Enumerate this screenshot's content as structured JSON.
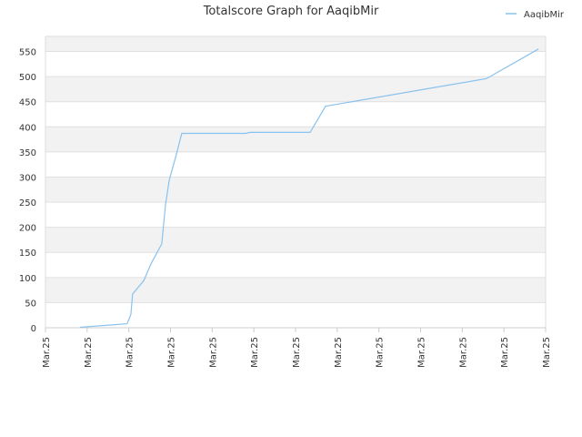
{
  "chart_data": {
    "type": "line",
    "title": "Totalscore Graph for AaqibMir",
    "x": [
      0.83,
      1.96,
      2.05,
      2.09,
      2.36,
      2.53,
      2.79,
      2.88,
      2.97,
      3.14,
      3.27,
      4.8,
      4.91,
      6.35,
      6.72,
      10.58,
      11.83
    ],
    "series": [
      {
        "name": "AaqibMir",
        "color": "#88c2ee",
        "values": [
          1,
          8,
          27,
          67,
          94,
          127,
          167,
          245,
          294,
          345,
          387,
          387,
          389,
          389,
          441,
          496,
          555
        ]
      }
    ],
    "xlim": [
      0,
      12
    ],
    "xticks": [
      {
        "value": 0,
        "label": "Mar.25"
      },
      {
        "value": 1,
        "label": "Mar.25"
      },
      {
        "value": 2,
        "label": "Mar.25"
      },
      {
        "value": 3,
        "label": "Mar.25"
      },
      {
        "value": 4,
        "label": "Mar.25"
      },
      {
        "value": 5,
        "label": "Mar.25"
      },
      {
        "value": 6,
        "label": "Mar.25"
      },
      {
        "value": 7,
        "label": "Mar.25"
      },
      {
        "value": 8,
        "label": "Mar.25"
      },
      {
        "value": 9,
        "label": "Mar.25"
      },
      {
        "value": 10,
        "label": "Mar.25"
      },
      {
        "value": 11,
        "label": "Mar.25"
      },
      {
        "value": 12,
        "label": "Mar.25"
      }
    ],
    "ylim": [
      0,
      580
    ],
    "yticks": [
      0,
      50,
      100,
      150,
      200,
      250,
      300,
      350,
      400,
      450,
      500,
      550
    ],
    "grid": true,
    "legend": "top-right"
  }
}
